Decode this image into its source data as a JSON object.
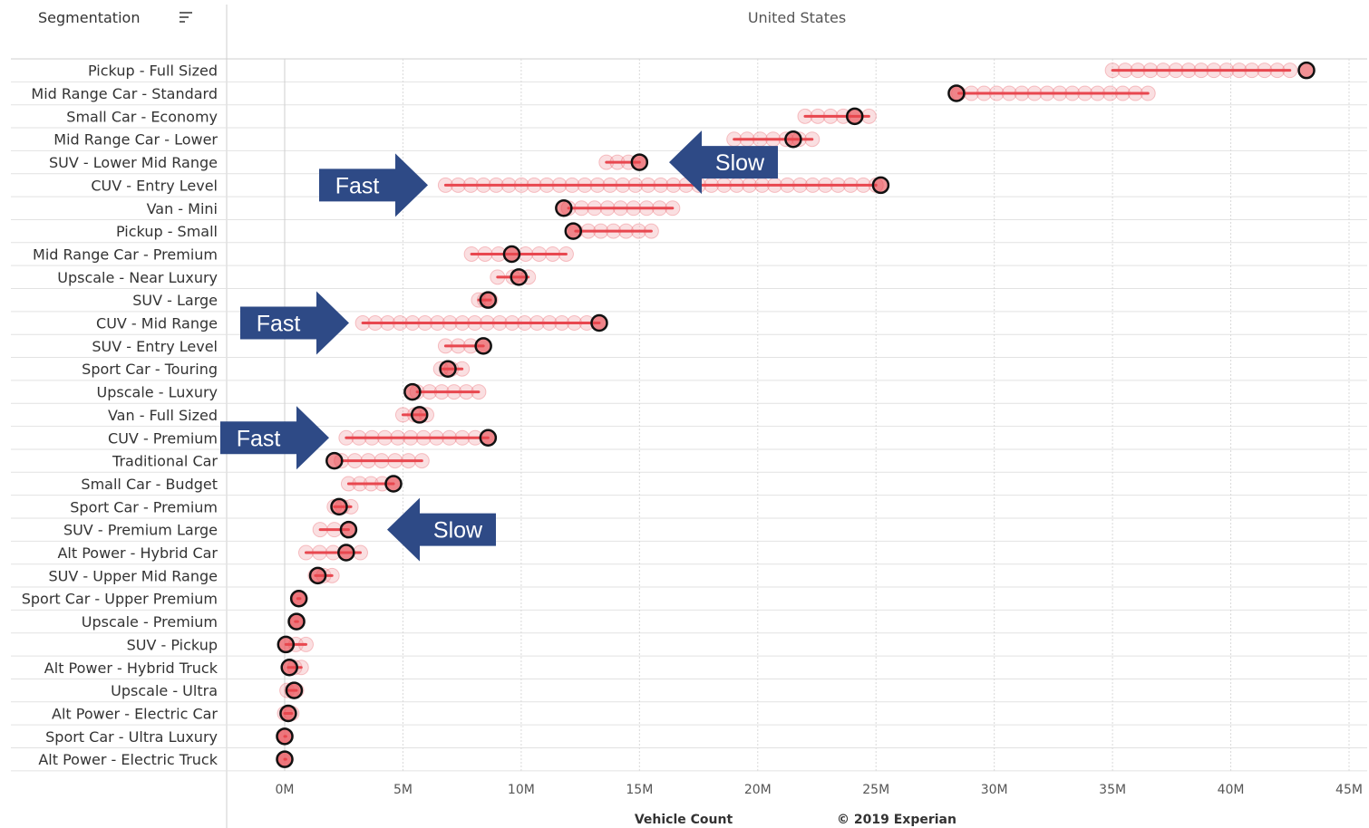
{
  "header": {
    "segmentation_label": "Segmentation",
    "panel_title": "United States"
  },
  "colors": {
    "accent_red": "#e8474f",
    "trail_red": "#f1a3a8",
    "marker_outline": "#111111",
    "callout_blue": "#2e4a86",
    "grid": "#d9d9d9"
  },
  "icons": {
    "sort": "sort-descending-icon"
  },
  "chart_data": {
    "type": "scatter",
    "title": "United States",
    "xlabel": "Vehicle Count",
    "credit": "© 2019 Experian",
    "xlim": [
      0,
      45000000
    ],
    "xticks": [
      {
        "v": 0,
        "label": "0M"
      },
      {
        "v": 5000000,
        "label": "5M"
      },
      {
        "v": 10000000,
        "label": "10M"
      },
      {
        "v": 15000000,
        "label": "15M"
      },
      {
        "v": 20000000,
        "label": "20M"
      },
      {
        "v": 25000000,
        "label": "25M"
      },
      {
        "v": 30000000,
        "label": "30M"
      },
      {
        "v": 35000000,
        "label": "35M"
      },
      {
        "v": 40000000,
        "label": "40M"
      },
      {
        "v": 45000000,
        "label": "45M"
      }
    ],
    "grid": "vertical",
    "rows": [
      {
        "label": "Pickup - Full Sized",
        "range": [
          35000000,
          42500000
        ],
        "current": 43200000
      },
      {
        "label": "Mid Range Car - Standard",
        "range": [
          28500000,
          36500000
        ],
        "current": 28400000
      },
      {
        "label": "Small Car - Economy",
        "range": [
          22000000,
          24700000
        ],
        "current": 24100000
      },
      {
        "label": "Mid Range Car - Lower",
        "range": [
          19000000,
          22300000
        ],
        "current": 21500000
      },
      {
        "label": "SUV - Lower Mid Range",
        "range": [
          13600000,
          15000000
        ],
        "current": 15000000
      },
      {
        "label": "CUV - Entry Level",
        "range": [
          6800000,
          25000000
        ],
        "current": 25200000
      },
      {
        "label": "Van - Mini",
        "range": [
          12000000,
          16400000
        ],
        "current": 11800000
      },
      {
        "label": "Pickup - Small",
        "range": [
          12300000,
          15500000
        ],
        "current": 12200000
      },
      {
        "label": "Mid Range Car - Premium",
        "range": [
          7900000,
          11900000
        ],
        "current": 9600000
      },
      {
        "label": "Upscale - Near Luxury",
        "range": [
          9000000,
          10300000
        ],
        "current": 9900000
      },
      {
        "label": "SUV - Large",
        "range": [
          8200000,
          8700000
        ],
        "current": 8600000
      },
      {
        "label": "CUV - Mid Range",
        "range": [
          3300000,
          13300000
        ],
        "current": 13300000
      },
      {
        "label": "SUV - Entry Level",
        "range": [
          6800000,
          8400000
        ],
        "current": 8400000
      },
      {
        "label": "Sport Car - Touring",
        "range": [
          6600000,
          7500000
        ],
        "current": 6900000
      },
      {
        "label": "Upscale - Luxury",
        "range": [
          5600000,
          8200000
        ],
        "current": 5400000
      },
      {
        "label": "Van - Full Sized",
        "range": [
          5000000,
          6000000
        ],
        "current": 5700000
      },
      {
        "label": "CUV - Premium",
        "range": [
          2600000,
          8600000
        ],
        "current": 8600000
      },
      {
        "label": "Traditional Car",
        "range": [
          2400000,
          5800000
        ],
        "current": 2100000
      },
      {
        "label": "Small Car - Budget",
        "range": [
          2700000,
          4600000
        ],
        "current": 4600000
      },
      {
        "label": "Sport Car - Premium",
        "range": [
          2100000,
          2800000
        ],
        "current": 2300000
      },
      {
        "label": "SUV - Premium Large",
        "range": [
          1500000,
          2700000
        ],
        "current": 2700000
      },
      {
        "label": "Alt Power - Hybrid Car",
        "range": [
          900000,
          3200000
        ],
        "current": 2600000
      },
      {
        "label": "SUV - Upper Mid Range",
        "range": [
          1300000,
          2000000
        ],
        "current": 1400000
      },
      {
        "label": "Sport Car - Upper Premium",
        "range": [
          550000,
          650000
        ],
        "current": 600000
      },
      {
        "label": "Upscale - Premium",
        "range": [
          450000,
          550000
        ],
        "current": 500000
      },
      {
        "label": "SUV - Pickup",
        "range": [
          50000,
          900000
        ],
        "current": 50000
      },
      {
        "label": "Alt Power - Hybrid Truck",
        "range": [
          150000,
          700000
        ],
        "current": 200000
      },
      {
        "label": "Upscale - Ultra",
        "range": [
          100000,
          500000
        ],
        "current": 400000
      },
      {
        "label": "Alt Power - Electric Car",
        "range": [
          0,
          300000
        ],
        "current": 150000
      },
      {
        "label": "Sport Car - Ultra Luxury",
        "range": [
          0,
          50000
        ],
        "current": 0
      },
      {
        "label": "Alt Power - Electric Truck",
        "range": [
          0,
          50000
        ],
        "current": 0
      }
    ]
  },
  "callouts": [
    {
      "text": "Fast",
      "direction": "right",
      "row": "CUV - Entry Level"
    },
    {
      "text": "Slow",
      "direction": "left",
      "row": "SUV - Lower Mid Range"
    },
    {
      "text": "Fast",
      "direction": "right",
      "row": "CUV - Mid Range"
    },
    {
      "text": "Fast",
      "direction": "right",
      "row": "CUV - Premium"
    },
    {
      "text": "Slow",
      "direction": "left",
      "row": "SUV - Premium Large"
    }
  ]
}
